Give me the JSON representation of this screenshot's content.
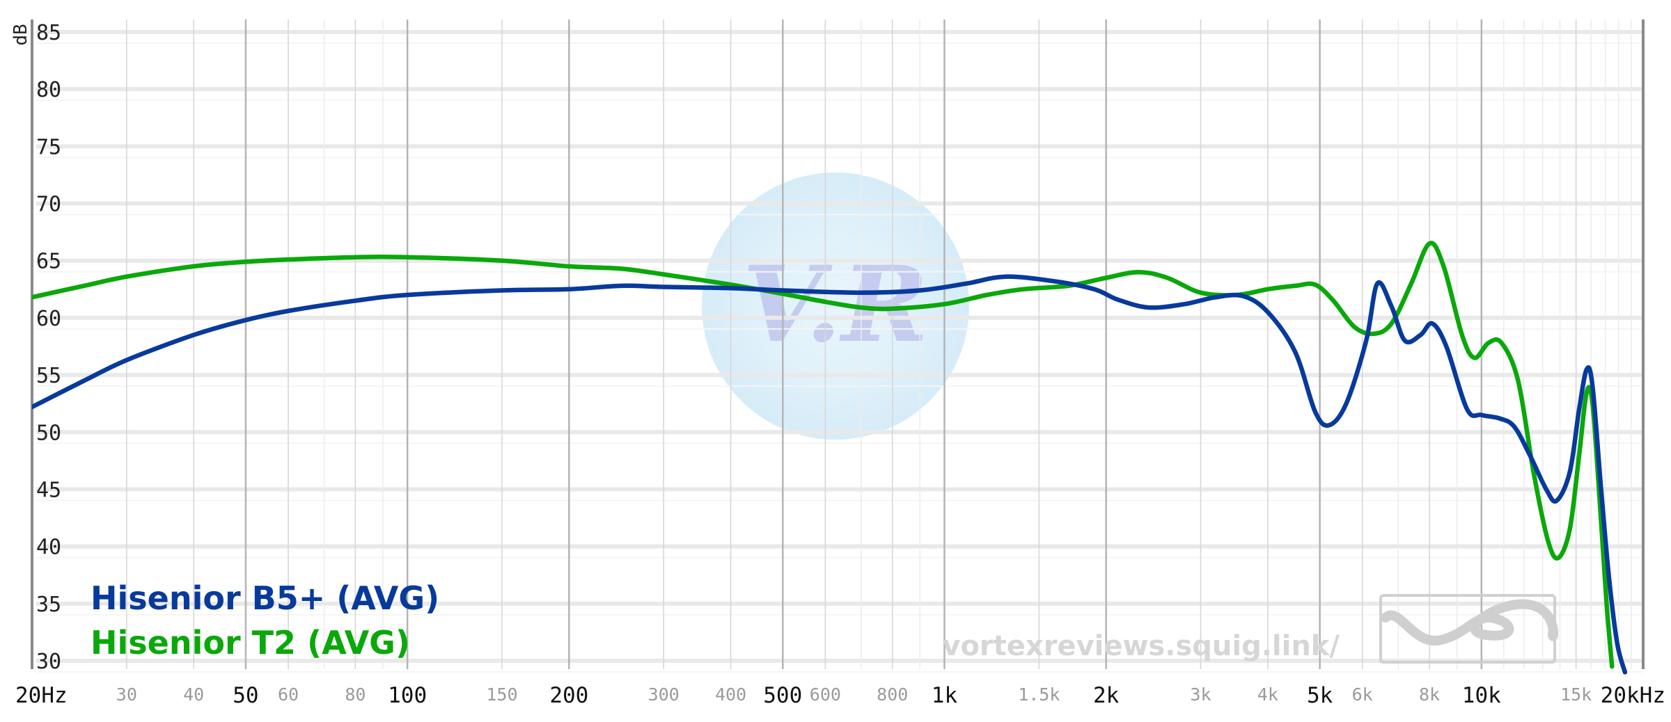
{
  "chart_data": {
    "type": "line",
    "title": "",
    "xlabel": "",
    "ylabel": "dB",
    "x_scale": "log",
    "xlim": [
      20,
      20000
    ],
    "ylim": [
      30,
      85
    ],
    "grid": true,
    "legend_position": "bottom-left",
    "y_ticks": [
      "85",
      "80",
      "75",
      "70",
      "65",
      "60",
      "55",
      "50",
      "45",
      "40",
      "35",
      "30"
    ],
    "x_ticks_major": [
      {
        "f": 20,
        "label": "20Hz"
      },
      {
        "f": 50,
        "label": "50"
      },
      {
        "f": 100,
        "label": "100"
      },
      {
        "f": 200,
        "label": "200"
      },
      {
        "f": 500,
        "label": "500"
      },
      {
        "f": 1000,
        "label": "1k"
      },
      {
        "f": 2000,
        "label": "2k"
      },
      {
        "f": 5000,
        "label": "5k"
      },
      {
        "f": 10000,
        "label": "10k"
      },
      {
        "f": 20000,
        "label": "20kHz"
      }
    ],
    "x_ticks_minor": [
      {
        "f": 30,
        "label": "30"
      },
      {
        "f": 40,
        "label": "40"
      },
      {
        "f": 60,
        "label": "60"
      },
      {
        "f": 80,
        "label": "80"
      },
      {
        "f": 150,
        "label": "150"
      },
      {
        "f": 300,
        "label": "300"
      },
      {
        "f": 400,
        "label": "400"
      },
      {
        "f": 600,
        "label": "600"
      },
      {
        "f": 800,
        "label": "800"
      },
      {
        "f": 1500,
        "label": "1.5k"
      },
      {
        "f": 3000,
        "label": "3k"
      },
      {
        "f": 4000,
        "label": "4k"
      },
      {
        "f": 6000,
        "label": "6k"
      },
      {
        "f": 8000,
        "label": "8k"
      },
      {
        "f": 15000,
        "label": "15k"
      }
    ],
    "series": [
      {
        "name": "Hisenior B5+ (AVG)",
        "color": "#083a9c",
        "points": [
          [
            20,
            52.2
          ],
          [
            25,
            54.5
          ],
          [
            30,
            56.3
          ],
          [
            40,
            58.5
          ],
          [
            50,
            59.8
          ],
          [
            60,
            60.6
          ],
          [
            80,
            61.5
          ],
          [
            100,
            62.0
          ],
          [
            150,
            62.4
          ],
          [
            200,
            62.5
          ],
          [
            250,
            62.8
          ],
          [
            300,
            62.7
          ],
          [
            400,
            62.6
          ],
          [
            500,
            62.4
          ],
          [
            700,
            62.2
          ],
          [
            900,
            62.4
          ],
          [
            1100,
            63.0
          ],
          [
            1300,
            63.6
          ],
          [
            1600,
            63.2
          ],
          [
            1900,
            62.5
          ],
          [
            2100,
            61.6
          ],
          [
            2400,
            60.9
          ],
          [
            2800,
            61.2
          ],
          [
            3200,
            61.8
          ],
          [
            3600,
            61.9
          ],
          [
            4000,
            60.5
          ],
          [
            4500,
            57.0
          ],
          [
            4900,
            51.8
          ],
          [
            5200,
            50.6
          ],
          [
            5600,
            52.5
          ],
          [
            6100,
            58.0
          ],
          [
            6400,
            63.0
          ],
          [
            6800,
            61.0
          ],
          [
            7200,
            58.0
          ],
          [
            7700,
            58.5
          ],
          [
            8100,
            59.5
          ],
          [
            8600,
            57.5
          ],
          [
            9400,
            52.0
          ],
          [
            10000,
            51.5
          ],
          [
            10800,
            51.2
          ],
          [
            11500,
            50.5
          ],
          [
            12300,
            48.0
          ],
          [
            13200,
            45.0
          ],
          [
            13800,
            44.0
          ],
          [
            14600,
            46.5
          ],
          [
            15200,
            52.0
          ],
          [
            15700,
            55.5
          ],
          [
            16100,
            54.0
          ],
          [
            16700,
            45.0
          ],
          [
            17300,
            37.0
          ],
          [
            17900,
            31.5
          ],
          [
            18500,
            29.0
          ]
        ]
      },
      {
        "name": "Hisenior T2 (AVG)",
        "color": "#0aa80a",
        "points": [
          [
            20,
            61.8
          ],
          [
            25,
            62.8
          ],
          [
            30,
            63.6
          ],
          [
            40,
            64.5
          ],
          [
            50,
            64.9
          ],
          [
            60,
            65.1
          ],
          [
            80,
            65.3
          ],
          [
            100,
            65.3
          ],
          [
            150,
            65.0
          ],
          [
            200,
            64.5
          ],
          [
            250,
            64.3
          ],
          [
            300,
            63.8
          ],
          [
            400,
            62.9
          ],
          [
            500,
            62.1
          ],
          [
            600,
            61.4
          ],
          [
            700,
            60.9
          ],
          [
            800,
            60.8
          ],
          [
            1000,
            61.2
          ],
          [
            1200,
            62.0
          ],
          [
            1400,
            62.5
          ],
          [
            1700,
            62.8
          ],
          [
            2000,
            63.5
          ],
          [
            2300,
            64.0
          ],
          [
            2600,
            63.5
          ],
          [
            3000,
            62.2
          ],
          [
            3500,
            62.0
          ],
          [
            4000,
            62.5
          ],
          [
            4500,
            62.8
          ],
          [
            4900,
            62.9
          ],
          [
            5300,
            61.5
          ],
          [
            5800,
            59.2
          ],
          [
            6300,
            58.6
          ],
          [
            6800,
            59.5
          ],
          [
            7400,
            63.0
          ],
          [
            8000,
            66.5
          ],
          [
            8500,
            64.5
          ],
          [
            9200,
            58.5
          ],
          [
            9700,
            56.5
          ],
          [
            10300,
            57.8
          ],
          [
            10900,
            57.8
          ],
          [
            11700,
            54.5
          ],
          [
            12500,
            46.5
          ],
          [
            13300,
            40.5
          ],
          [
            13900,
            39.0
          ],
          [
            14600,
            41.5
          ],
          [
            15200,
            48.0
          ],
          [
            15700,
            53.5
          ],
          [
            16100,
            52.5
          ],
          [
            16600,
            44.0
          ],
          [
            17100,
            35.0
          ],
          [
            17500,
            29.5
          ]
        ]
      }
    ]
  },
  "watermark": {
    "url_text": "vortexreviews.squig.link/",
    "logo_text": "V.R"
  }
}
